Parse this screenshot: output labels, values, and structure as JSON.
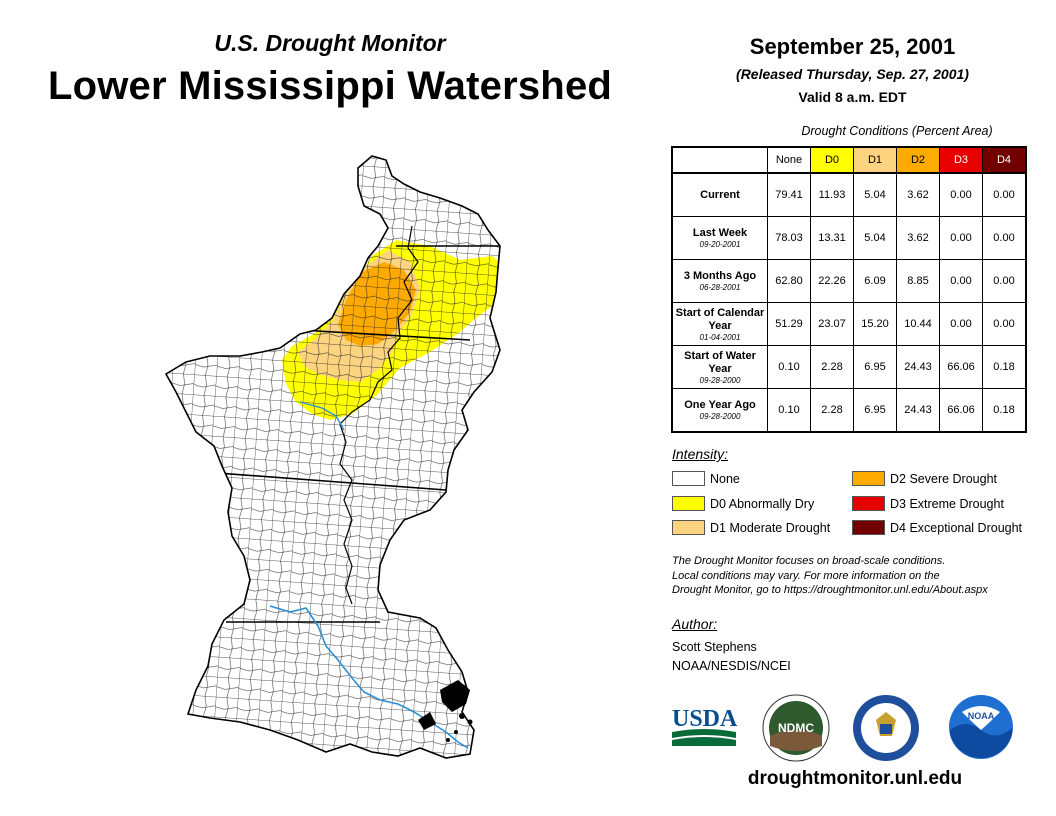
{
  "header": {
    "subtitle": "U.S. Drought Monitor",
    "title": "Lower Mississippi Watershed",
    "date": "September 25, 2001",
    "released": "(Released Thursday, Sep. 27, 2001)",
    "valid": "Valid 8 a.m. EDT"
  },
  "table": {
    "caption": "Drought Conditions (Percent Area)",
    "columns": [
      {
        "label": "None",
        "color": "#ffffff",
        "text_color": "#000000"
      },
      {
        "label": "D0",
        "color": "#ffff00",
        "text_color": "#000000"
      },
      {
        "label": "D1",
        "color": "#fcd37f",
        "text_color": "#000000"
      },
      {
        "label": "D2",
        "color": "#ffaa00",
        "text_color": "#000000"
      },
      {
        "label": "D3",
        "color": "#e60000",
        "text_color": "#ffffff"
      },
      {
        "label": "D4",
        "color": "#730000",
        "text_color": "#ffffff"
      }
    ],
    "rows": [
      {
        "label": "Current",
        "date": "",
        "values": [
          "79.41",
          "11.93",
          "5.04",
          "3.62",
          "0.00",
          "0.00"
        ]
      },
      {
        "label": "Last Week",
        "date": "09-20-2001",
        "values": [
          "78.03",
          "13.31",
          "5.04",
          "3.62",
          "0.00",
          "0.00"
        ]
      },
      {
        "label": "3 Months Ago",
        "date": "06-28-2001",
        "values": [
          "62.80",
          "22.26",
          "6.09",
          "8.85",
          "0.00",
          "0.00"
        ]
      },
      {
        "label": "Start of Calendar Year",
        "date": "01-04-2001",
        "values": [
          "51.29",
          "23.07",
          "15.20",
          "10.44",
          "0.00",
          "0.00"
        ]
      },
      {
        "label": "Start of Water Year",
        "date": "09-28-2000",
        "values": [
          "0.10",
          "2.28",
          "6.95",
          "24.43",
          "66.06",
          "0.18"
        ]
      },
      {
        "label": "One Year Ago",
        "date": "09-28-2000",
        "values": [
          "0.10",
          "2.28",
          "6.95",
          "24.43",
          "66.06",
          "0.18"
        ]
      }
    ]
  },
  "legend": {
    "title": "Intensity:",
    "items": [
      {
        "label": "None",
        "color": "#ffffff"
      },
      {
        "label": "D0 Abnormally Dry",
        "color": "#ffff00"
      },
      {
        "label": "D1 Moderate Drought",
        "color": "#fcd37f"
      },
      {
        "label": "D2 Severe Drought",
        "color": "#ffaa00"
      },
      {
        "label": "D3 Extreme Drought",
        "color": "#e60000"
      },
      {
        "label": "D4 Exceptional Drought",
        "color": "#730000"
      }
    ]
  },
  "note": {
    "line1": "The Drought Monitor focuses on broad-scale conditions.",
    "line2": "Local conditions may vary. For more information on the",
    "line3": "Drought Monitor, go to https://droughtmonitor.unl.edu/About.aspx"
  },
  "author": {
    "heading": "Author:",
    "name": "Scott Stephens",
    "org": "NOAA/NESDIS/NCEI"
  },
  "logos": {
    "usda": "USDA",
    "ndmc": "NDMC",
    "noaa": "NOAA"
  },
  "footer_url": "droughtmonitor.unl.edu",
  "colors": {
    "river": "#2a8fd6",
    "county_line": "#111111"
  }
}
